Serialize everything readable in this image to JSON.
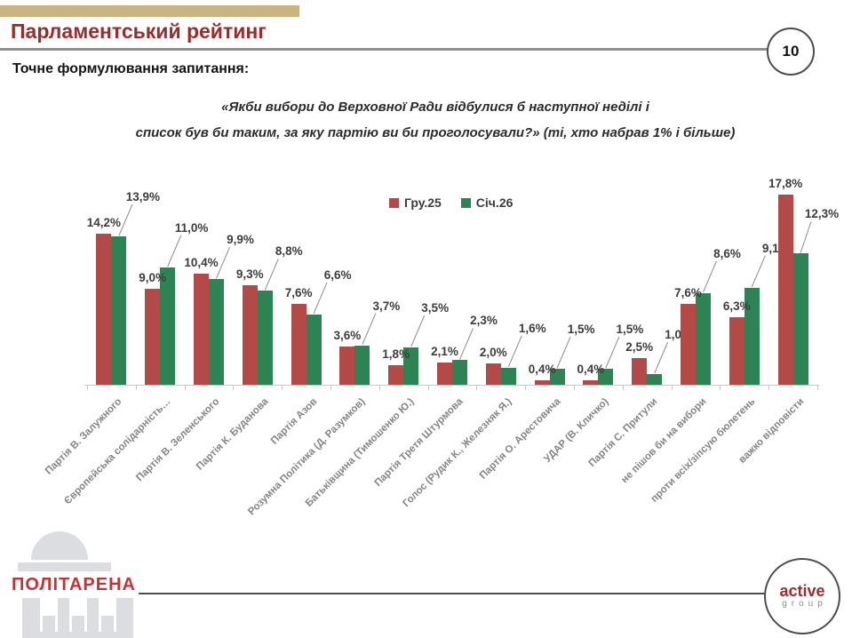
{
  "header": {
    "title": "Парламентський рейтинг",
    "page_number": "10"
  },
  "question": {
    "label": "Точне формулювання запитання:",
    "line1": "«Якби вибори до Верховної Ради відбулися б наступної неділі і",
    "line2": "список був би таким, за яку партію ви би проголосували?» (ті, хто набрав 1% і більше)"
  },
  "chart_data": {
    "type": "bar",
    "title": "",
    "xlabel": "",
    "ylabel": "",
    "ylim": [
      0,
      19
    ],
    "grid": false,
    "legend_position": "top-center",
    "value_suffix": "%",
    "decimal_separator": ",",
    "axis_label_rotation_deg": 45,
    "categories": [
      "Партія В. Залужного",
      "Європейська солідарність…",
      "Партія В. Зеленського",
      "Партія К. Буданова",
      "Партія Азов",
      "Розумна Політика (Д. Разумков)",
      "Батьківщина (Тимошенко Ю.)",
      "Партія Третя Штурмова",
      "Голос (Рудик К., Железняк Я.)",
      "Партія О. Арестовича",
      "УДАР (В. Кличко)",
      "Партія С. Притули",
      "не пішов би на вибори",
      "проти всіх/зіпсую бюлетень",
      "важко відповісти"
    ],
    "series": [
      {
        "name": "Гру.25",
        "color": "#b44a47",
        "values": [
          14.2,
          9.0,
          10.4,
          9.3,
          7.6,
          3.6,
          1.8,
          2.1,
          2.0,
          0.4,
          0.4,
          2.5,
          7.6,
          6.3,
          17.8
        ]
      },
      {
        "name": "Січ.26",
        "color": "#2e8355",
        "values": [
          13.9,
          11.0,
          9.9,
          8.8,
          6.6,
          3.7,
          3.5,
          2.3,
          1.6,
          1.5,
          1.5,
          1.0,
          8.6,
          9.1,
          12.3
        ]
      }
    ]
  },
  "footer": {
    "politarena_label": "ПОЛІТАРЕНА",
    "active_group_line1": "active",
    "active_group_line2": "group"
  },
  "colors": {
    "title": "#9b2c2c",
    "accent_bar": "#c9b480",
    "data_label": "#3d3d3d",
    "axis_label": "#858585",
    "callout_line": "#8c8c8c"
  }
}
